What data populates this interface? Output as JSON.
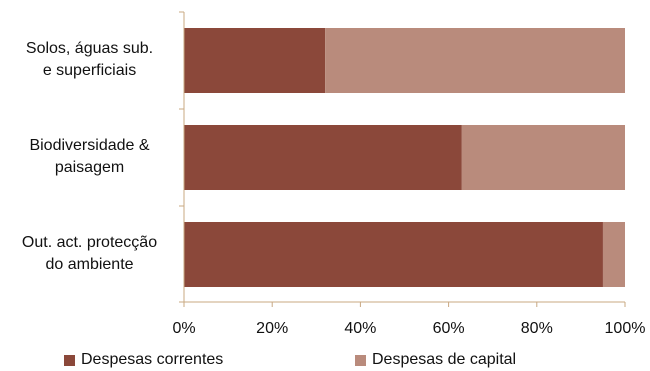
{
  "chart_data": {
    "type": "bar",
    "orientation": "horizontal",
    "stacked": true,
    "categories": [
      "Solos, águas sub. e superficiais",
      "Biodiversidade & paisagem",
      "Out. act. protecção do ambiente"
    ],
    "category_lines": [
      [
        "Solos, águas sub.",
        "e superficiais"
      ],
      [
        "Biodiversidade &",
        "paisagem"
      ],
      [
        "Out. act. protecção",
        "do ambiente"
      ]
    ],
    "series": [
      {
        "name": "Despesas correntes",
        "color": "#8b483a",
        "values": [
          32,
          63,
          95
        ]
      },
      {
        "name": "Despesas de capital",
        "color": "#b98b7c",
        "values": [
          68,
          37,
          5
        ]
      }
    ],
    "xlim": [
      0,
      100
    ],
    "x_ticks": [
      "0%",
      "20%",
      "40%",
      "60%",
      "80%",
      "100%"
    ],
    "x_tick_values": [
      0,
      20,
      40,
      60,
      80,
      100
    ],
    "grid": false,
    "legend_position": "bottom"
  }
}
